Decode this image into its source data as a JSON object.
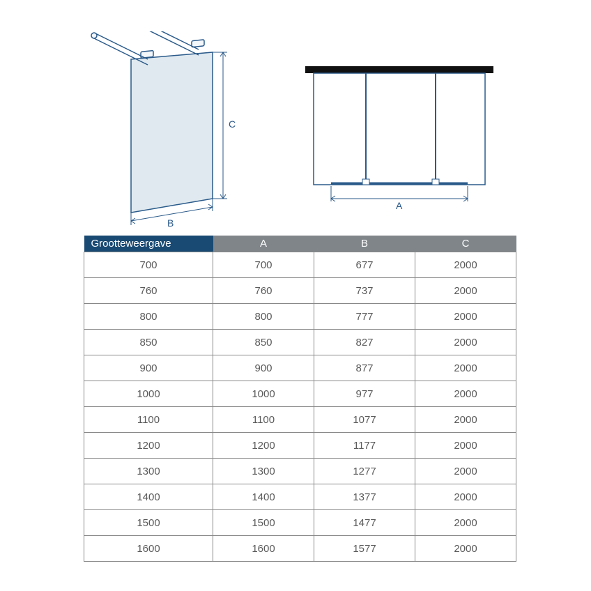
{
  "diagram_labels": {
    "A": "A",
    "B": "B",
    "C": "C"
  },
  "diagram_colors": {
    "stroke": "#2a5a8a",
    "panel_fill": "#dfe9ef",
    "black": "#111111"
  },
  "table": {
    "header_bg_first": "#194a73",
    "header_bg_rest": "#7f8589",
    "header_text_color": "#ffffff",
    "border_color": "#888888",
    "cell_text_color": "#5a5a5a",
    "columns": [
      "Grootteweergave",
      "A",
      "B",
      "C"
    ],
    "rows": [
      [
        "700",
        "700",
        "677",
        "2000"
      ],
      [
        "760",
        "760",
        "737",
        "2000"
      ],
      [
        "800",
        "800",
        "777",
        "2000"
      ],
      [
        "850",
        "850",
        "827",
        "2000"
      ],
      [
        "900",
        "900",
        "877",
        "2000"
      ],
      [
        "1000",
        "1000",
        "977",
        "2000"
      ],
      [
        "1100",
        "1100",
        "1077",
        "2000"
      ],
      [
        "1200",
        "1200",
        "1177",
        "2000"
      ],
      [
        "1300",
        "1300",
        "1277",
        "2000"
      ],
      [
        "1400",
        "1400",
        "1377",
        "2000"
      ],
      [
        "1500",
        "1500",
        "1477",
        "2000"
      ],
      [
        "1600",
        "1600",
        "1577",
        "2000"
      ]
    ]
  }
}
